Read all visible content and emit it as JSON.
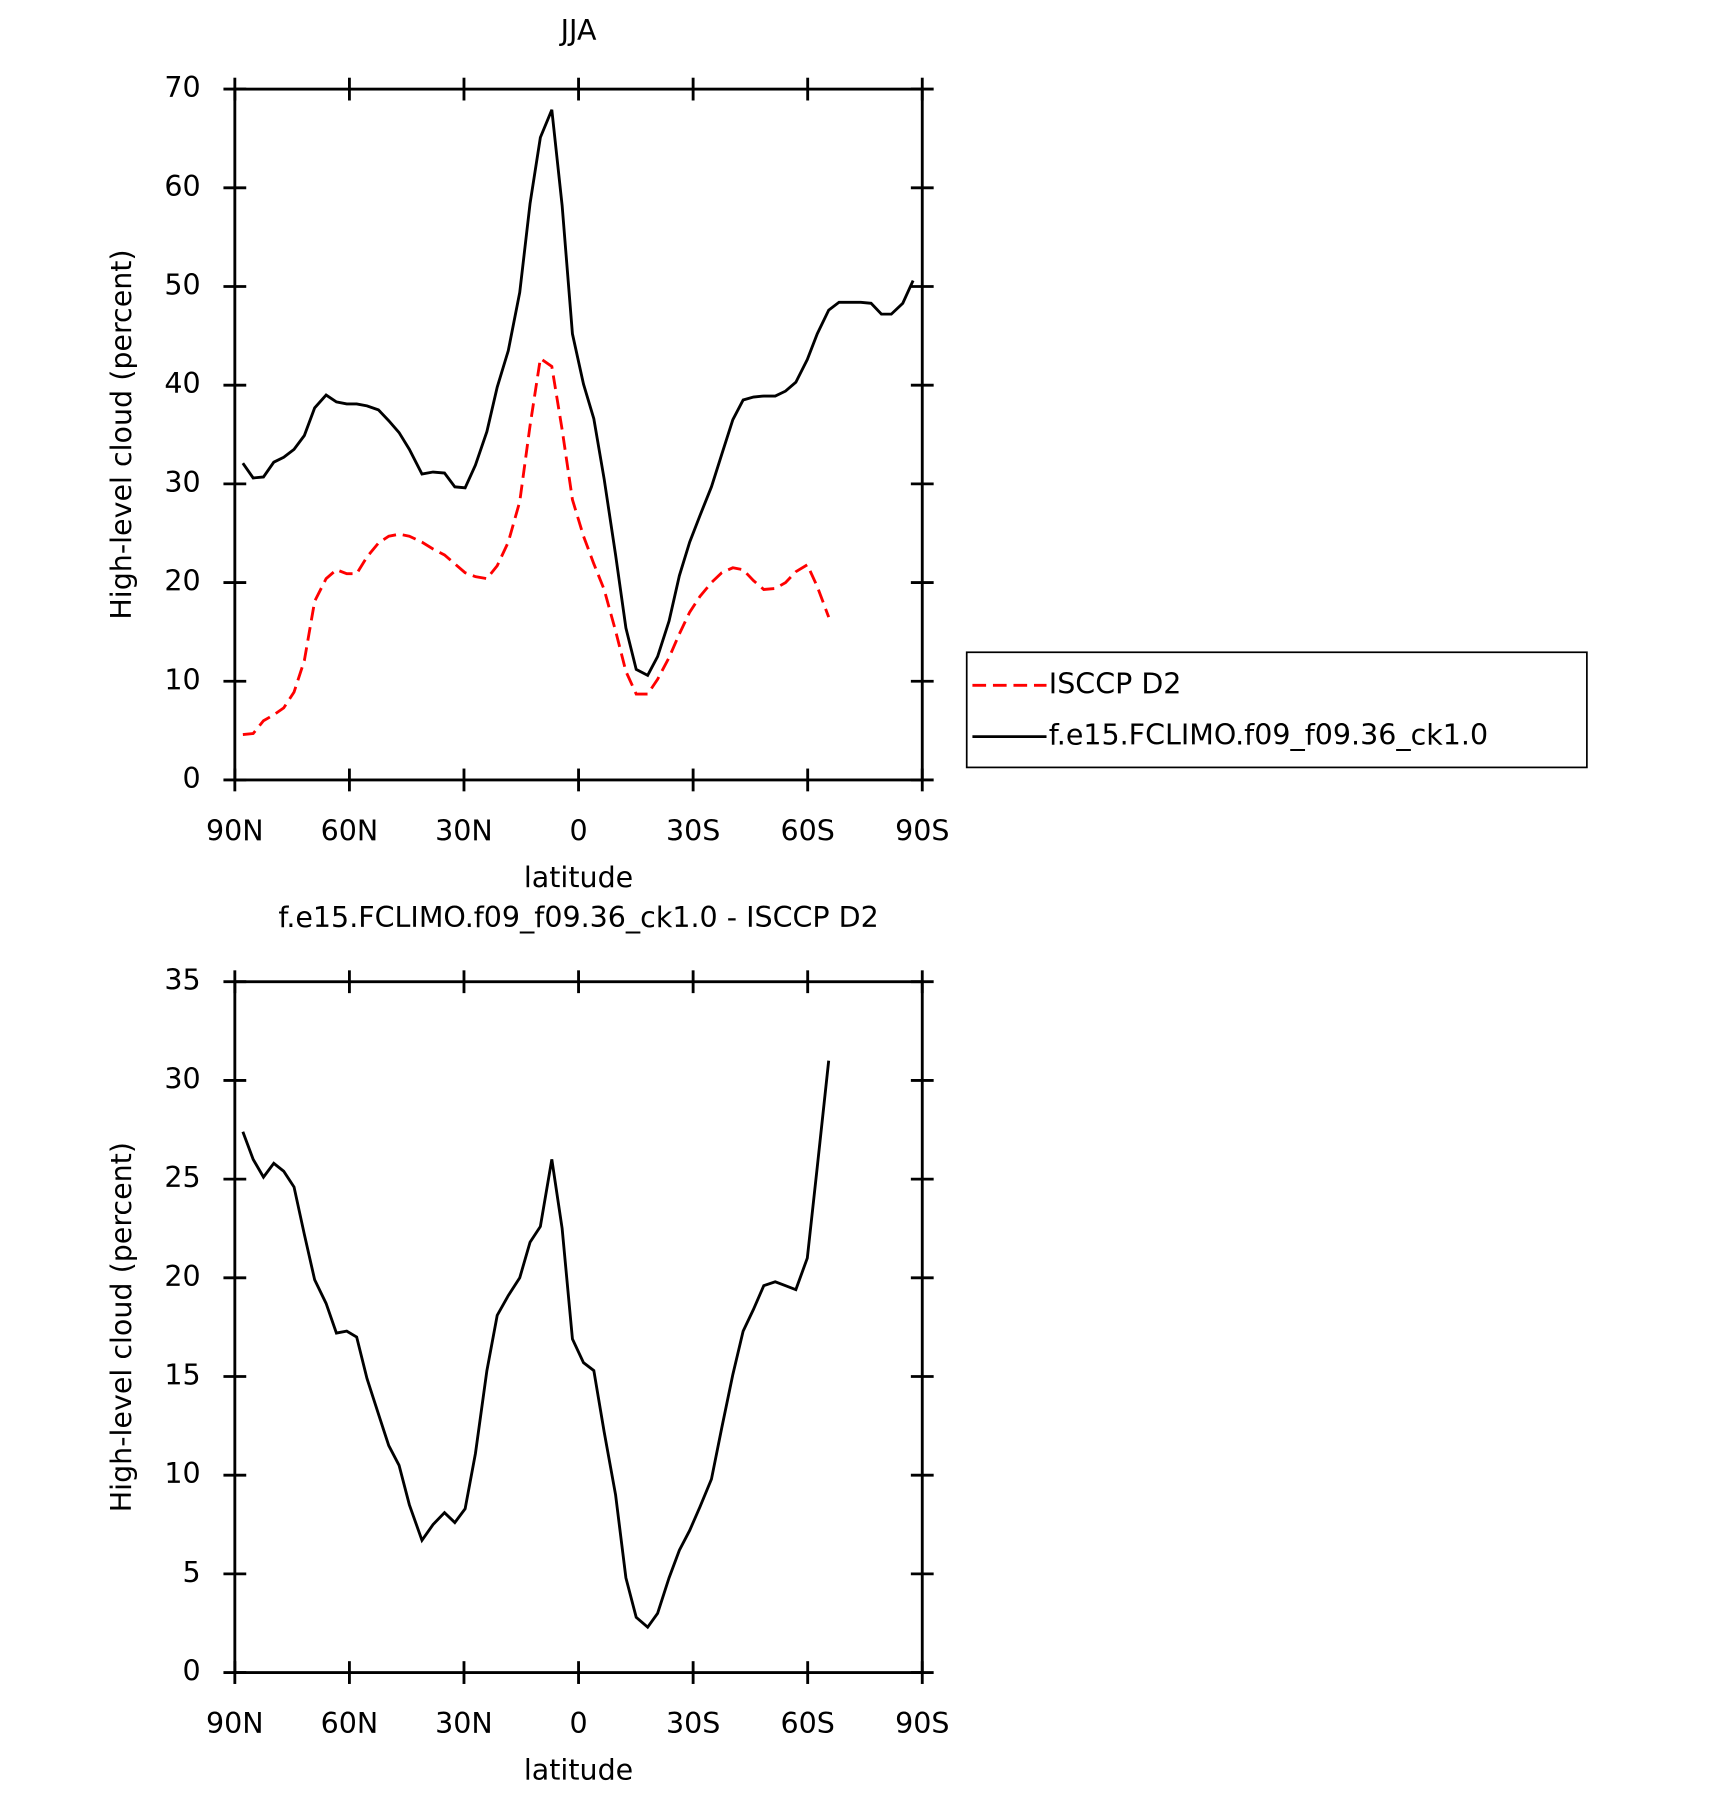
{
  "charts": [
    {
      "type": "line",
      "title": "JJA",
      "xlabel": "latitude",
      "ylabel": "High-level cloud (percent)",
      "x": [
        87.9,
        85.2,
        82.5,
        79.8,
        77.2,
        74.5,
        71.8,
        69.1,
        66.1,
        63.4,
        60.7,
        58.1,
        55.4,
        52.4,
        49.7,
        47.0,
        44.3,
        41.0,
        38.1,
        35.1,
        32.4,
        29.7,
        27.0,
        24.0,
        21.3,
        18.4,
        15.4,
        12.7,
        10.0,
        7.0,
        4.3,
        1.6,
        -1.3,
        -4.0,
        -6.7,
        -9.7,
        -12.4,
        -15.1,
        -18.1,
        -20.7,
        -23.7,
        -26.4,
        -29.1,
        -31.8,
        -34.8,
        -37.5,
        -40.4,
        -43.1,
        -45.8,
        -48.5,
        -51.5,
        -54.2,
        -56.9,
        -59.9,
        -62.5,
        -65.5,
        -68.2,
        -70.9,
        -73.9,
        -76.6,
        -79.3,
        -81.9,
        -84.9,
        -87.6
      ],
      "series": [
        {
          "name": "ISCCP D2",
          "color": "#ff0000",
          "dash": true,
          "values": [
            4.6,
            4.7,
            6.0,
            6.6,
            7.3,
            8.9,
            12.1,
            18.1,
            20.4,
            21.3,
            20.9,
            20.9,
            22.6,
            24.0,
            24.7,
            24.9,
            24.7,
            24.1,
            23.4,
            22.8,
            21.9,
            21.0,
            20.6,
            20.4,
            21.7,
            24.1,
            28.2,
            35.9,
            42.7,
            41.9,
            35.5,
            28.4,
            24.7,
            21.9,
            19.3,
            15.1,
            11.0,
            8.7,
            8.7,
            10.2,
            12.4,
            14.8,
            17.0,
            18.6,
            20.0,
            21.0,
            21.5,
            21.3,
            20.2,
            19.3,
            19.4,
            20.0,
            21.1,
            21.8,
            19.6,
            16.5,
            null,
            null,
            null,
            null,
            null,
            null,
            null,
            null
          ]
        },
        {
          "name": "f.e15.FCLIMO.f09_f09.36_ck1.0",
          "color": "#000000",
          "dash": false,
          "values": [
            32.1,
            30.6,
            30.7,
            32.2,
            32.7,
            33.5,
            34.9,
            37.7,
            39.0,
            38.3,
            38.1,
            38.1,
            37.9,
            37.5,
            36.4,
            35.2,
            33.5,
            31.0,
            31.2,
            31.1,
            29.7,
            29.6,
            31.9,
            35.3,
            39.8,
            43.5,
            49.4,
            58.4,
            65.1,
            67.9,
            58.2,
            45.2,
            40.1,
            36.6,
            30.5,
            22.8,
            15.4,
            11.2,
            10.6,
            12.5,
            16.1,
            20.7,
            24.1,
            26.8,
            29.7,
            33.0,
            36.5,
            38.5,
            38.8,
            38.9,
            38.9,
            39.4,
            40.3,
            42.6,
            45.2,
            47.6,
            48.4,
            48.4,
            48.4,
            48.3,
            47.2,
            47.2,
            48.3,
            50.6
          ]
        }
      ],
      "xlim": [
        90,
        -90
      ],
      "xticks": [
        {
          "value": 90,
          "label": "90N"
        },
        {
          "value": 60,
          "label": "60N"
        },
        {
          "value": 30,
          "label": "30N"
        },
        0,
        {
          "value": -30,
          "label": "30S"
        },
        {
          "value": -60,
          "label": "60S"
        },
        {
          "value": -90,
          "label": "90S"
        }
      ],
      "ylim": [
        0,
        70
      ],
      "yticks": [
        0,
        10,
        20,
        30,
        40,
        50,
        60,
        70
      ],
      "legend": "right"
    },
    {
      "type": "line",
      "title": "f.e15.FCLIMO.f09_f09.36_ck1.0 - ISCCP D2",
      "xlabel": "latitude",
      "ylabel": "High-level cloud (percent)",
      "x": [
        87.9,
        85.2,
        82.5,
        79.8,
        77.2,
        74.5,
        71.8,
        69.1,
        66.1,
        63.4,
        60.7,
        58.1,
        55.4,
        52.4,
        49.7,
        47.0,
        44.3,
        41.0,
        38.1,
        35.1,
        32.4,
        29.7,
        27.0,
        24.0,
        21.3,
        18.4,
        15.4,
        12.7,
        10.0,
        7.0,
        4.3,
        1.6,
        -1.3,
        -4.0,
        -6.7,
        -9.7,
        -12.4,
        -15.1,
        -18.1,
        -20.7,
        -23.7,
        -26.4,
        -29.1,
        -31.8,
        -34.8,
        -37.5,
        -40.4,
        -43.1,
        -45.8,
        -48.5,
        -51.5,
        -54.2,
        -56.9,
        -59.9,
        -62.5,
        -65.5,
        -68.2,
        -70.9,
        -73.9,
        -76.6,
        -79.3,
        -81.9,
        -84.9,
        -87.6
      ],
      "series": [
        {
          "color": "#000000",
          "dash": false,
          "values": [
            27.4,
            26.0,
            25.1,
            25.8,
            25.4,
            24.6,
            22.2,
            19.9,
            18.7,
            17.2,
            17.3,
            17.0,
            14.9,
            13.1,
            11.5,
            10.5,
            8.5,
            6.7,
            7.5,
            8.1,
            7.6,
            8.3,
            11.1,
            15.3,
            18.1,
            19.1,
            20.0,
            21.8,
            22.6,
            26.0,
            22.5,
            16.9,
            15.7,
            15.3,
            12.2,
            9.0,
            4.8,
            2.8,
            2.3,
            3.0,
            4.8,
            6.2,
            7.2,
            8.4,
            9.8,
            12.4,
            15.1,
            17.3,
            18.4,
            19.6,
            19.8,
            19.6,
            19.4,
            21.0,
            25.6,
            31.0,
            null,
            null,
            null,
            null,
            null,
            null,
            null,
            null
          ]
        }
      ],
      "xlim": [
        90,
        -90
      ],
      "xticks": [
        {
          "value": 90,
          "label": "90N"
        },
        {
          "value": 60,
          "label": "60N"
        },
        {
          "value": 30,
          "label": "30N"
        },
        0,
        {
          "value": -30,
          "label": "30S"
        },
        {
          "value": -60,
          "label": "60S"
        },
        {
          "value": -90,
          "label": "90S"
        }
      ],
      "ylim": [
        0,
        35
      ],
      "yticks": [
        0,
        5,
        10,
        15,
        20,
        25,
        30,
        35
      ]
    }
  ]
}
